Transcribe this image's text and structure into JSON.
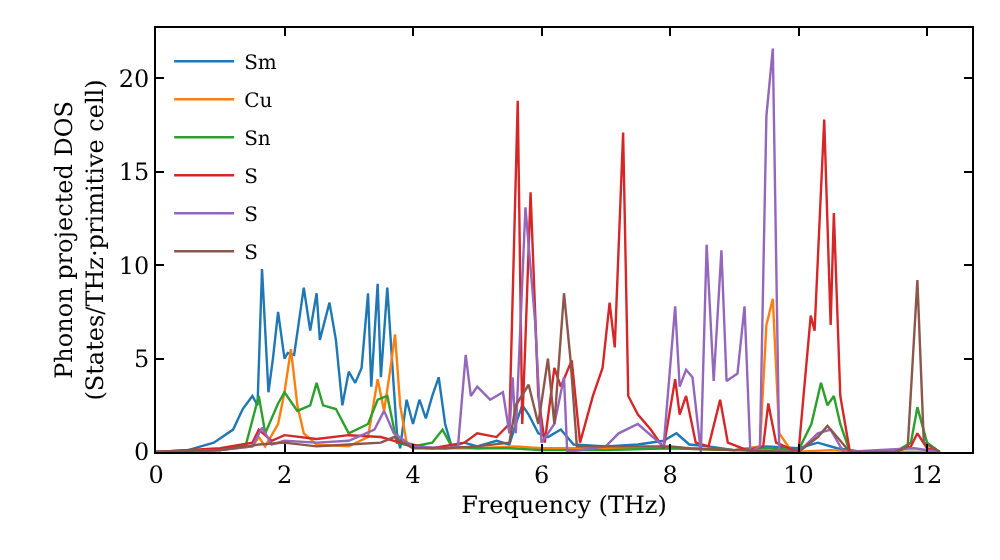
{
  "chart_data": {
    "type": "line",
    "xlabel": "Frequency (THz)",
    "ylabel": "Phonon projected DOS\n(States/THz·primitive cell)",
    "xlim": [
      0,
      12.7
    ],
    "ylim": [
      0,
      22.7
    ],
    "xticks": [
      0,
      2,
      4,
      6,
      8,
      10,
      12
    ],
    "yticks": [
      0,
      5,
      10,
      15,
      20
    ],
    "legend": "top left",
    "marker": "none",
    "line_style": "solid",
    "series": [
      {
        "name": "Sm",
        "color": "#1f77b4",
        "x": [
          0,
          0.5,
          0.9,
          1.2,
          1.35,
          1.5,
          1.58,
          1.65,
          1.75,
          1.82,
          1.9,
          2.0,
          2.05,
          2.15,
          2.3,
          2.4,
          2.5,
          2.55,
          2.7,
          2.8,
          2.9,
          3.0,
          3.1,
          3.2,
          3.3,
          3.35,
          3.45,
          3.5,
          3.6,
          3.7,
          3.75,
          3.8,
          3.9,
          4.0,
          4.1,
          4.2,
          4.3,
          4.4,
          4.5,
          4.6,
          4.8,
          5.0,
          5.3,
          5.5,
          5.6,
          5.7,
          5.8,
          5.95,
          6.1,
          6.3,
          6.5,
          7.0,
          7.5,
          7.9,
          8.1,
          8.3,
          8.6,
          9.0,
          9.5,
          10.0,
          10.3,
          10.6,
          11,
          11.8,
          12.2
        ],
        "values": [
          0,
          0.1,
          0.5,
          1.2,
          2.3,
          3.0,
          2.5,
          9.8,
          3.2,
          5,
          7.5,
          5,
          5.3,
          5.2,
          8.8,
          6.5,
          8.5,
          6,
          8,
          6,
          2.5,
          4.3,
          3.7,
          4.5,
          8.5,
          3.5,
          9,
          4,
          8.8,
          3.5,
          1,
          0.2,
          2.8,
          1.5,
          2.8,
          1.8,
          3,
          4,
          1.5,
          0.3,
          0.5,
          0.3,
          0.6,
          0.4,
          1.5,
          2.5,
          2,
          1,
          0.8,
          1.2,
          0.4,
          0.3,
          0.4,
          0.6,
          1.0,
          0.4,
          0.3,
          0.1,
          0.3,
          0.2,
          0.5,
          0.2,
          0,
          0,
          0
        ]
      },
      {
        "name": "Cu",
        "color": "#ff7f0e",
        "x": [
          0,
          1,
          1.5,
          1.6,
          1.7,
          1.9,
          2.0,
          2.1,
          2.2,
          2.3,
          2.5,
          3.0,
          3.3,
          3.45,
          3.55,
          3.65,
          3.72,
          3.8,
          3.9,
          4.2,
          5,
          5.6,
          6,
          7,
          8,
          9,
          9.4,
          9.5,
          9.6,
          9.7,
          9.9,
          10.5,
          11,
          11.8,
          12.2
        ],
        "values": [
          0,
          0.1,
          0.3,
          0.8,
          0.3,
          1.5,
          3.2,
          5.5,
          2.5,
          1,
          0.4,
          0.3,
          0.8,
          3.9,
          2.2,
          4.5,
          6.3,
          2.5,
          0.5,
          0.2,
          0.2,
          0.3,
          0.2,
          0.2,
          0.2,
          0.1,
          0.3,
          6.8,
          8.2,
          1,
          0,
          0.1,
          0,
          0,
          0
        ]
      },
      {
        "name": "Sn",
        "color": "#2ca02c",
        "x": [
          0,
          1,
          1.4,
          1.6,
          1.7,
          1.9,
          2.0,
          2.2,
          2.4,
          2.5,
          2.6,
          2.8,
          3.0,
          3.3,
          3.45,
          3.6,
          3.75,
          4.0,
          4.3,
          4.46,
          4.6,
          5,
          5.5,
          6,
          7,
          8,
          9,
          9.5,
          10.0,
          10.2,
          10.35,
          10.45,
          10.55,
          10.65,
          10.8,
          11.5,
          11.75,
          11.85,
          12.0,
          12.2
        ],
        "values": [
          0,
          0.1,
          0.4,
          3,
          1,
          2.6,
          3.2,
          2.2,
          2.5,
          3.7,
          2.5,
          2.3,
          1,
          1.5,
          2.8,
          3,
          0.5,
          0.3,
          0.5,
          1.2,
          0.3,
          0.2,
          0.2,
          0.1,
          0.1,
          0.2,
          0.1,
          0.2,
          0.1,
          1.5,
          3.7,
          2.5,
          3,
          1.5,
          0,
          0,
          0.5,
          2.4,
          0.5,
          0
        ]
      },
      {
        "name": "S",
        "color": "#d62728",
        "x": [
          0,
          1,
          1.5,
          1.6,
          1.8,
          2.0,
          2.5,
          3.0,
          3.5,
          3.8,
          4.3,
          4.8,
          5.0,
          5.3,
          5.5,
          5.63,
          5.7,
          5.75,
          5.83,
          5.95,
          6.05,
          6.2,
          6.3,
          6.47,
          6.6,
          6.8,
          6.95,
          7.06,
          7.14,
          7.27,
          7.35,
          7.5,
          7.7,
          7.9,
          8.08,
          8.15,
          8.25,
          8.4,
          8.6,
          8.78,
          8.9,
          9.2,
          9.45,
          9.53,
          9.65,
          10.0,
          10.19,
          10.25,
          10.4,
          10.5,
          10.55,
          10.65,
          10.8,
          11.5,
          11.75,
          11.85,
          12.0,
          12.2
        ],
        "values": [
          0,
          0.2,
          0.5,
          1.2,
          0.6,
          0.9,
          0.7,
          0.9,
          0.8,
          0.5,
          0.2,
          0.5,
          1.0,
          0.8,
          1.5,
          18.8,
          1.5,
          6,
          13.9,
          3,
          0.5,
          4.5,
          3.5,
          4.9,
          0.5,
          3,
          4.5,
          8,
          5.6,
          17.1,
          3,
          2,
          1.2,
          0.2,
          3.9,
          2,
          3,
          0.5,
          0.3,
          2.8,
          0.5,
          0.1,
          0.3,
          2.6,
          0.5,
          0,
          7.3,
          6.5,
          17.8,
          6.8,
          12.8,
          3,
          0,
          0,
          0.3,
          1,
          0.2,
          0
        ]
      },
      {
        "name": "S",
        "color": "#9467bd",
        "x": [
          0,
          1,
          1.5,
          1.65,
          1.8,
          2.0,
          2.5,
          3.0,
          3.4,
          3.55,
          3.7,
          4.0,
          4.5,
          4.7,
          4.82,
          4.9,
          5.0,
          5.2,
          5.4,
          5.5,
          5.55,
          5.6,
          5.75,
          5.9,
          6.0,
          6.2,
          6.35,
          6.4,
          7.0,
          7.2,
          7.5,
          7.9,
          8.08,
          8.15,
          8.25,
          8.35,
          8.48,
          8.57,
          8.68,
          8.8,
          8.88,
          9.05,
          9.16,
          9.25,
          9.4,
          9.5,
          9.6,
          9.7,
          10.0,
          10.3,
          10.5,
          10.7,
          11.8,
          12.2
        ],
        "values": [
          0,
          0.1,
          0.3,
          1.3,
          0.4,
          0.6,
          0.5,
          0.6,
          1.2,
          2.2,
          1,
          0.3,
          0.2,
          0.3,
          5.2,
          3,
          3.5,
          2.8,
          3.2,
          1,
          4,
          1,
          13.1,
          7,
          0.5,
          1.5,
          4,
          0,
          0.3,
          1,
          1.5,
          0.3,
          7.8,
          3.5,
          4.4,
          4,
          0,
          11.1,
          3.8,
          10.8,
          3.8,
          4.2,
          7.8,
          0,
          0.3,
          18,
          21.6,
          0,
          0,
          1,
          1.2,
          0,
          0.2,
          0
        ]
      },
      {
        "name": "S",
        "color": "#8c564b",
        "x": [
          0,
          1,
          1.6,
          2.0,
          2.5,
          3.0,
          3.5,
          3.7,
          4.0,
          4.5,
          5.0,
          5.5,
          5.6,
          5.8,
          5.95,
          6.1,
          6.2,
          6.35,
          6.45,
          6.55,
          6.8,
          7.5,
          8.0,
          8.3,
          9.0,
          10.0,
          10.3,
          10.45,
          10.6,
          10.8,
          11.5,
          11.7,
          11.85,
          11.95,
          12.2
        ],
        "values": [
          0,
          0.1,
          0.4,
          0.5,
          0.3,
          0.4,
          0.5,
          0.8,
          0.2,
          0.2,
          0.3,
          0.5,
          2.5,
          3.6,
          1.5,
          5,
          1.5,
          8.5,
          5,
          0.3,
          0.3,
          0.3,
          0.3,
          0.2,
          0.1,
          0,
          0.8,
          1.4,
          0.8,
          0,
          0,
          0.3,
          9.2,
          0.5,
          0
        ]
      }
    ]
  }
}
